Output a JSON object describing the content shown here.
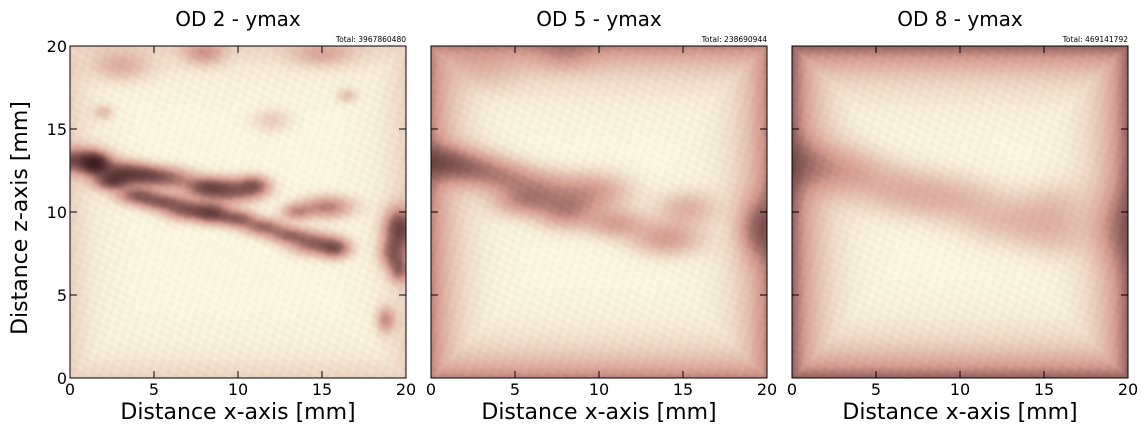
{
  "figure": {
    "ylabel": "Distance z-axis [mm]",
    "colormap": {
      "low": "#fbf8e2",
      "mid": "#d49a8f",
      "high": "#2a0d12"
    }
  },
  "chart_data": [
    {
      "type": "heatmap",
      "title": "OD 2 - ymax",
      "annotation": "Total: 3967860480",
      "xlabel": "Distance x-axis [mm]",
      "ylabel": "Distance z-axis [mm]",
      "xlim": [
        0,
        20
      ],
      "ylim": [
        0,
        20
      ],
      "xticks": [
        0,
        5,
        10,
        15,
        20
      ],
      "yticks": [
        0,
        5,
        10,
        15,
        20
      ],
      "xtick_labels": [
        "0",
        "5",
        "10",
        "15",
        "20"
      ],
      "ytick_labels": [
        "0",
        "5",
        "10",
        "15",
        "20"
      ],
      "edge_darkening": 0.15,
      "feature_strength": 1.0,
      "features": [
        {
          "x": 0.6,
          "z": 13.1,
          "sx": 1.1,
          "sz": 0.5,
          "v": 0.85
        },
        {
          "x": 1.5,
          "z": 12.9,
          "sx": 0.5,
          "sz": 0.4,
          "v": 1.0
        },
        {
          "x": 3.0,
          "z": 12.4,
          "sx": 1.0,
          "sz": 0.45,
          "v": 0.8
        },
        {
          "x": 4.5,
          "z": 12.2,
          "sx": 0.9,
          "sz": 0.4,
          "v": 0.65
        },
        {
          "x": 6.0,
          "z": 12.0,
          "sx": 1.0,
          "sz": 0.45,
          "v": 0.55
        },
        {
          "x": 8.0,
          "z": 11.5,
          "sx": 0.8,
          "sz": 0.4,
          "v": 0.6
        },
        {
          "x": 9.5,
          "z": 11.3,
          "sx": 1.2,
          "sz": 0.5,
          "v": 0.8
        },
        {
          "x": 11.0,
          "z": 11.6,
          "sx": 0.6,
          "sz": 0.4,
          "v": 0.55
        },
        {
          "x": 2.5,
          "z": 11.8,
          "sx": 0.7,
          "sz": 0.35,
          "v": 0.75
        },
        {
          "x": 4.0,
          "z": 11.0,
          "sx": 0.8,
          "sz": 0.35,
          "v": 0.7
        },
        {
          "x": 5.5,
          "z": 10.6,
          "sx": 0.9,
          "sz": 0.35,
          "v": 0.7
        },
        {
          "x": 7.0,
          "z": 10.1,
          "sx": 0.9,
          "sz": 0.4,
          "v": 0.75
        },
        {
          "x": 8.5,
          "z": 9.9,
          "sx": 0.7,
          "sz": 0.4,
          "v": 0.85
        },
        {
          "x": 10.0,
          "z": 9.6,
          "sx": 0.7,
          "sz": 0.35,
          "v": 0.7
        },
        {
          "x": 11.5,
          "z": 9.1,
          "sx": 0.8,
          "sz": 0.35,
          "v": 0.65
        },
        {
          "x": 13.0,
          "z": 8.6,
          "sx": 0.8,
          "sz": 0.35,
          "v": 0.6
        },
        {
          "x": 14.5,
          "z": 8.1,
          "sx": 0.9,
          "sz": 0.45,
          "v": 0.7
        },
        {
          "x": 15.8,
          "z": 7.8,
          "sx": 0.6,
          "sz": 0.4,
          "v": 0.7
        },
        {
          "x": 15.3,
          "z": 10.3,
          "sx": 1.0,
          "sz": 0.45,
          "v": 0.55
        },
        {
          "x": 13.5,
          "z": 10.0,
          "sx": 0.6,
          "sz": 0.35,
          "v": 0.45
        },
        {
          "x": 19.6,
          "z": 9.0,
          "sx": 0.6,
          "sz": 0.8,
          "v": 0.9
        },
        {
          "x": 19.2,
          "z": 7.5,
          "sx": 0.5,
          "sz": 0.6,
          "v": 0.6
        },
        {
          "x": 19.6,
          "z": 6.5,
          "sx": 0.4,
          "sz": 0.5,
          "v": 0.55
        },
        {
          "x": 18.8,
          "z": 3.5,
          "sx": 0.35,
          "sz": 0.5,
          "v": 0.45
        },
        {
          "x": 8.0,
          "z": 19.6,
          "sx": 0.8,
          "sz": 0.5,
          "v": 0.35
        },
        {
          "x": 3.0,
          "z": 18.8,
          "sx": 1.2,
          "sz": 0.6,
          "v": 0.25
        },
        {
          "x": 15.0,
          "z": 19.5,
          "sx": 1.2,
          "sz": 0.5,
          "v": 0.25
        },
        {
          "x": 12.0,
          "z": 15.5,
          "sx": 0.8,
          "sz": 0.5,
          "v": 0.15
        },
        {
          "x": 16.5,
          "z": 17.0,
          "sx": 0.4,
          "sz": 0.3,
          "v": 0.2
        },
        {
          "x": 2.0,
          "z": 16.0,
          "sx": 0.4,
          "sz": 0.3,
          "v": 0.2
        }
      ]
    },
    {
      "type": "heatmap",
      "title": "OD 5 - ymax",
      "annotation": "Total: 238690944",
      "xlabel": "Distance x-axis [mm]",
      "ylabel": "",
      "xlim": [
        0,
        20
      ],
      "ylim": [
        0,
        20
      ],
      "xticks": [
        0,
        5,
        10,
        15,
        20
      ],
      "yticks": [
        0,
        5,
        10,
        15,
        20
      ],
      "xtick_labels": [
        "0",
        "5",
        "10",
        "15",
        "20"
      ],
      "ytick_labels": [],
      "edge_darkening": 0.55,
      "feature_strength": 0.55,
      "features": [
        {
          "x": 0.6,
          "z": 13.1,
          "sx": 1.3,
          "sz": 0.7,
          "v": 0.85
        },
        {
          "x": 2.5,
          "z": 12.6,
          "sx": 1.4,
          "sz": 0.7,
          "v": 0.8
        },
        {
          "x": 4.5,
          "z": 12.0,
          "sx": 1.3,
          "sz": 0.7,
          "v": 0.65
        },
        {
          "x": 6.5,
          "z": 11.5,
          "sx": 1.3,
          "sz": 0.7,
          "v": 0.55
        },
        {
          "x": 9.5,
          "z": 11.2,
          "sx": 1.6,
          "sz": 0.8,
          "v": 0.75
        },
        {
          "x": 5.5,
          "z": 10.6,
          "sx": 1.2,
          "sz": 0.6,
          "v": 0.7
        },
        {
          "x": 8.0,
          "z": 10.0,
          "sx": 1.2,
          "sz": 0.7,
          "v": 0.8
        },
        {
          "x": 11.0,
          "z": 9.3,
          "sx": 1.2,
          "sz": 0.6,
          "v": 0.65
        },
        {
          "x": 14.0,
          "z": 8.4,
          "sx": 1.4,
          "sz": 0.7,
          "v": 0.7
        },
        {
          "x": 15.2,
          "z": 10.2,
          "sx": 1.2,
          "sz": 0.7,
          "v": 0.5
        },
        {
          "x": 19.5,
          "z": 9.0,
          "sx": 0.8,
          "sz": 1.2,
          "v": 0.8
        },
        {
          "x": 8.0,
          "z": 19.5,
          "sx": 1.2,
          "sz": 0.7,
          "v": 0.3
        },
        {
          "x": 3.0,
          "z": 18.5,
          "sx": 1.5,
          "sz": 0.9,
          "v": 0.2
        }
      ]
    },
    {
      "type": "heatmap",
      "title": "OD 8 - ymax",
      "annotation": "Total: 469141792",
      "xlabel": "Distance x-axis [mm]",
      "ylabel": "",
      "xlim": [
        0,
        20
      ],
      "ylim": [
        0,
        20
      ],
      "xticks": [
        0,
        5,
        10,
        15,
        20
      ],
      "yticks": [
        0,
        5,
        10,
        15,
        20
      ],
      "xtick_labels": [
        "0",
        "5",
        "10",
        "15",
        "20"
      ],
      "ytick_labels": [],
      "edge_darkening": 0.75,
      "feature_strength": 0.35,
      "features": [
        {
          "x": 0.8,
          "z": 13.0,
          "sx": 1.8,
          "sz": 1.0,
          "v": 0.8
        },
        {
          "x": 3.5,
          "z": 12.3,
          "sx": 1.8,
          "sz": 1.0,
          "v": 0.7
        },
        {
          "x": 6.5,
          "z": 11.3,
          "sx": 1.8,
          "sz": 1.0,
          "v": 0.6
        },
        {
          "x": 9.5,
          "z": 10.8,
          "sx": 2.0,
          "sz": 1.0,
          "v": 0.65
        },
        {
          "x": 12.5,
          "z": 9.5,
          "sx": 1.8,
          "sz": 1.0,
          "v": 0.55
        },
        {
          "x": 15.5,
          "z": 8.8,
          "sx": 1.6,
          "sz": 1.0,
          "v": 0.55
        },
        {
          "x": 15.5,
          "z": 10.5,
          "sx": 1.4,
          "sz": 0.9,
          "v": 0.4
        },
        {
          "x": 19.4,
          "z": 9.0,
          "sx": 1.0,
          "sz": 1.5,
          "v": 0.6
        }
      ]
    }
  ]
}
